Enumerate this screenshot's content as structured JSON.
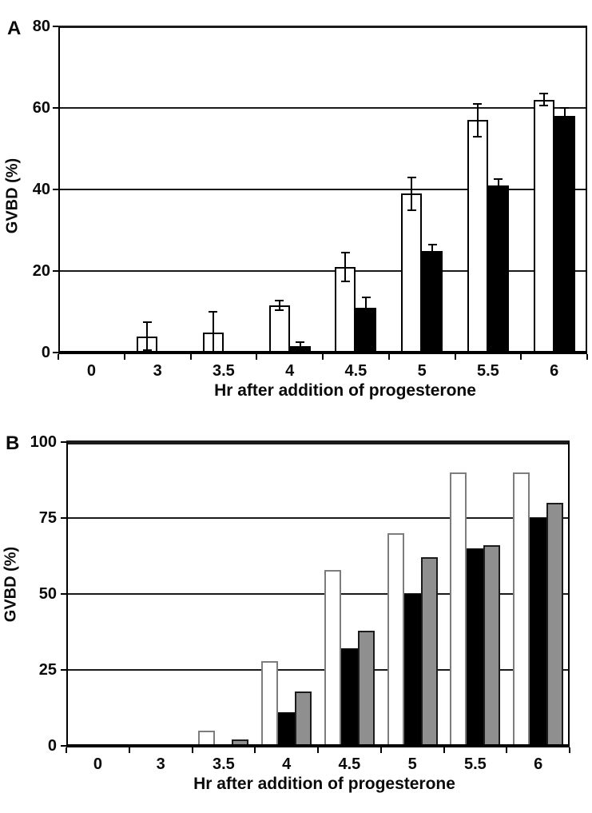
{
  "figure": {
    "panels": [
      {
        "letter": "A"
      },
      {
        "letter": "B"
      }
    ]
  },
  "chart_data": [
    {
      "type": "bar",
      "panel": "A",
      "title": "",
      "xlabel": "Hr after addition of progesterone",
      "ylabel": "GVBD (%)",
      "categories": [
        "0",
        "3",
        "3.5",
        "4",
        "4.5",
        "5",
        "5.5",
        "6"
      ],
      "ylim": [
        0,
        80
      ],
      "yticks": [
        0,
        20,
        40,
        60,
        80
      ],
      "grid": true,
      "legend": false,
      "error_bars": true,
      "series": [
        {
          "name": "open-bars",
          "fill": "#ffffff",
          "border": "#000000",
          "values": [
            0,
            4,
            5,
            11.5,
            21,
            39,
            57,
            62
          ],
          "errors": [
            0,
            3.5,
            5,
            1.2,
            3.5,
            4,
            4,
            1.5
          ]
        },
        {
          "name": "black-bars",
          "fill": "#000000",
          "border": "#000000",
          "values": [
            0,
            0,
            0,
            1.5,
            11,
            25,
            41,
            58
          ],
          "errors": [
            0,
            0,
            0,
            1,
            2.5,
            1.5,
            1.5,
            2
          ]
        }
      ]
    },
    {
      "type": "bar",
      "panel": "B",
      "title": "",
      "xlabel": "Hr after addition of progesterone",
      "ylabel": "GVBD (%)",
      "categories": [
        "0",
        "3",
        "3.5",
        "4",
        "4.5",
        "5",
        "5.5",
        "6"
      ],
      "ylim": [
        0,
        100
      ],
      "yticks": [
        0,
        25,
        50,
        75,
        100
      ],
      "grid": true,
      "legend": false,
      "error_bars": false,
      "series": [
        {
          "name": "open-bars",
          "fill": "#ffffff",
          "border": "#7d7d7d",
          "values": [
            0,
            0,
            5,
            28,
            58,
            70,
            90,
            90
          ],
          "errors": [
            0,
            0,
            0,
            0,
            0,
            0,
            0,
            0
          ]
        },
        {
          "name": "black-bars",
          "fill": "#000000",
          "border": "#000000",
          "values": [
            0,
            0,
            0,
            11,
            32,
            50,
            65,
            75
          ],
          "errors": [
            0,
            0,
            0,
            0,
            0,
            0,
            0,
            0
          ]
        },
        {
          "name": "gray-bars",
          "fill": "#8f8f8f",
          "border": "#1c1c1c",
          "values": [
            0,
            0,
            2,
            18,
            38,
            62,
            66,
            80
          ],
          "errors": [
            0,
            0,
            0,
            0,
            0,
            0,
            0,
            0
          ]
        }
      ]
    }
  ]
}
